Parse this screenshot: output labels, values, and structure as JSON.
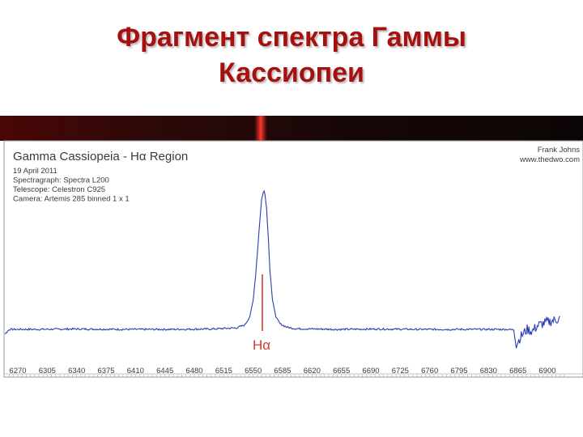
{
  "slide": {
    "title_line1": "Фрагмент спектра Гаммы",
    "title_line2": "Кассиопеи"
  },
  "chart_data": {
    "type": "line",
    "title": "Gamma Cassiopeia - Hα Region",
    "info_lines": [
      "19 April 2011",
      "Spectragraph: Spectra L200",
      "Telescope: Celestron C925",
      "Camera: Artemis 285 binned 1 x 1"
    ],
    "credit_lines": [
      "Frank Johns",
      "www.thedwo.com"
    ],
    "annotation": "Hα",
    "annotation_x": 6562.8,
    "xlabel": "",
    "ylabel": "",
    "x_ticks": [
      6270,
      6305,
      6340,
      6375,
      6410,
      6445,
      6480,
      6515,
      6550,
      6585,
      6620,
      6655,
      6690,
      6725,
      6760,
      6795,
      6830,
      6865,
      6900
    ],
    "xlim": [
      6270,
      6900
    ],
    "ylim": [
      0,
      6
    ],
    "grid": false,
    "legend": "none",
    "series": [
      {
        "color": "#2a3cb4",
        "points": [
          [
            6240,
            1.0
          ],
          [
            6250,
            1.02
          ],
          [
            6255,
            0.88
          ],
          [
            6260,
            1.0
          ],
          [
            6290,
            1.0
          ],
          [
            6340,
            1.01
          ],
          [
            6400,
            1.0
          ],
          [
            6450,
            1.0
          ],
          [
            6500,
            1.01
          ],
          [
            6530,
            1.04
          ],
          [
            6540,
            1.12
          ],
          [
            6546,
            1.35
          ],
          [
            6550,
            1.8
          ],
          [
            6553,
            2.5
          ],
          [
            6556,
            3.4
          ],
          [
            6558,
            4.0
          ],
          [
            6560,
            4.55
          ],
          [
            6562,
            4.75
          ],
          [
            6563,
            4.8
          ],
          [
            6564,
            4.72
          ],
          [
            6566,
            4.3
          ],
          [
            6568,
            3.5
          ],
          [
            6570,
            2.6
          ],
          [
            6573,
            1.8
          ],
          [
            6577,
            1.35
          ],
          [
            6582,
            1.15
          ],
          [
            6590,
            1.06
          ],
          [
            6600,
            1.02
          ],
          [
            6650,
            1.0
          ],
          [
            6700,
            1.01
          ],
          [
            6750,
            1.0
          ],
          [
            6800,
            1.0
          ],
          [
            6850,
            1.0
          ],
          [
            6860,
            0.99
          ],
          [
            6863,
            0.5
          ],
          [
            6866,
            0.72
          ],
          [
            6870,
            0.85
          ],
          [
            6876,
            1.0
          ],
          [
            6882,
            0.95
          ],
          [
            6888,
            1.1
          ],
          [
            6894,
            1.15
          ],
          [
            6900,
            1.2
          ],
          [
            6908,
            1.25
          ],
          [
            6915,
            1.3
          ]
        ]
      }
    ]
  }
}
